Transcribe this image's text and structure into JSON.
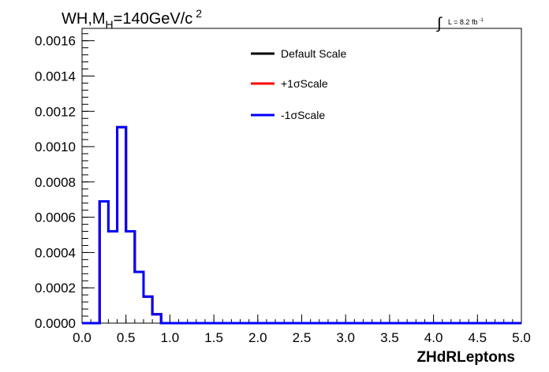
{
  "chart_data": {
    "type": "line",
    "title_main": "WH,M",
    "title_sub": "H",
    "title_rest": "=140GeV/c",
    "title_sup": "2",
    "lumi_prefix": "L = 8.2 fb",
    "lumi_sup": "-1",
    "xlabel": "ZHdRLeptons",
    "xlim": [
      0.0,
      5.0
    ],
    "ylim": [
      0.0,
      0.00167
    ],
    "x_ticks": [
      "0.0",
      "0.5",
      "1.0",
      "1.5",
      "2.0",
      "2.5",
      "3.0",
      "3.5",
      "4.0",
      "4.5",
      "5.0"
    ],
    "y_ticks": [
      "0.0000",
      "0.0002",
      "0.0004",
      "0.0006",
      "0.0008",
      "0.0010",
      "0.0012",
      "0.0014",
      "0.0016"
    ],
    "bin_width": 0.1,
    "bin_edges_start": 0.0,
    "series": [
      {
        "name": "Default Scale",
        "color": "#000000",
        "values": [
          0,
          0,
          0.00069,
          0.00052,
          0.00111,
          0.00052,
          0.00029,
          0.00015,
          5e-05,
          0,
          0,
          0,
          0,
          0,
          0,
          0,
          0,
          0,
          0,
          0,
          0,
          0,
          0,
          0,
          0,
          0,
          0,
          0,
          0,
          0,
          0,
          0,
          0,
          0,
          0,
          0,
          0,
          0,
          0,
          0,
          0,
          0,
          0,
          0,
          0,
          0,
          0,
          0,
          0,
          0
        ]
      },
      {
        "name": "+1σScale",
        "color": "#ff0000",
        "values": [
          0,
          0,
          0.00069,
          0.00052,
          0.00111,
          0.00052,
          0.00029,
          0.00015,
          5e-05,
          0,
          0,
          0,
          0,
          0,
          0,
          0,
          0,
          0,
          0,
          0,
          0,
          0,
          0,
          0,
          0,
          0,
          0,
          0,
          0,
          0,
          0,
          0,
          0,
          0,
          0,
          0,
          0,
          0,
          0,
          0,
          0,
          0,
          0,
          0,
          0,
          0,
          0,
          0,
          0,
          0
        ]
      },
      {
        "name": "-1σScale",
        "color": "#0000ff",
        "values": [
          0,
          0,
          0.00069,
          0.00052,
          0.00111,
          0.00052,
          0.00029,
          0.00015,
          5e-05,
          0,
          0,
          0,
          0,
          0,
          0,
          0,
          0,
          0,
          0,
          0,
          0,
          0,
          0,
          0,
          0,
          0,
          0,
          0,
          0,
          0,
          0,
          0,
          0,
          0,
          0,
          0,
          0,
          0,
          0,
          0,
          0,
          0,
          0,
          0,
          0,
          0,
          0,
          0,
          0,
          0
        ]
      }
    ],
    "legend_position": "top-center",
    "grid": false
  }
}
